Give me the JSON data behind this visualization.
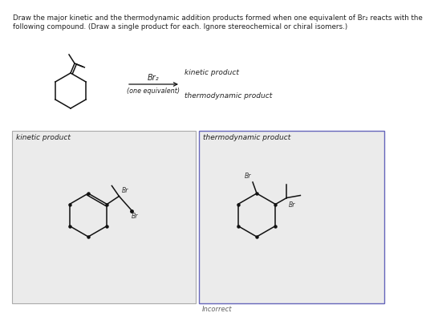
{
  "title_line1": "Draw the major kinetic and the thermodynamic addition products formed when one equivalent of Br₂ reacts with the",
  "title_line2": "following compound. (Draw a single product for each. Ignore stereochemical or chiral isomers.)",
  "reagent": "Br₂",
  "below_arrow": "(one equivalent)",
  "kinetic_label_arrow": "kinetic product",
  "thermo_label_arrow": "thermodynamic product",
  "box1_label": "kinetic product",
  "box2_label": "thermodynamic product",
  "incorrect_label": "Incorrect",
  "bg_white": "#ffffff",
  "bg_box": "#ebebeb",
  "box1_border": "#aaaaaa",
  "box2_border": "#6666bb",
  "line_color": "#111111",
  "text_color": "#222222",
  "Br_label": "Br"
}
